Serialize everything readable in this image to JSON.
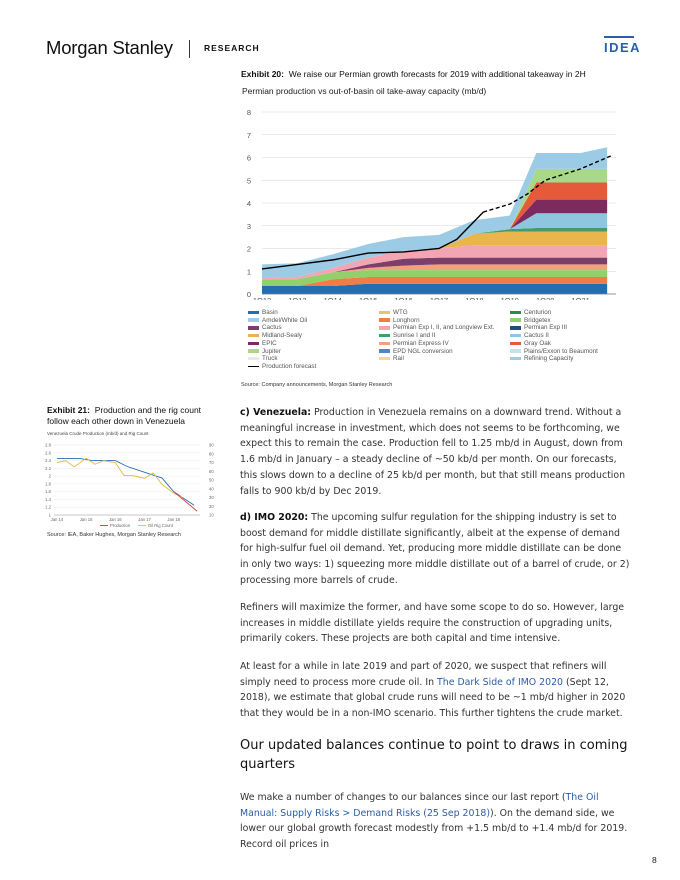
{
  "header": {
    "brand": "Morgan Stanley",
    "section": "RESEARCH",
    "badge": "IDEA"
  },
  "exhibit20": {
    "label": "Exhibit 20:",
    "title": "We raise our Permian growth forecasts for 2019 with additional takeaway in 2H",
    "subtitle": "Permian production vs out-of-basin oil take-away capacity (mb/d)",
    "source": "Source: Company announcements, Morgan Stanley Research"
  },
  "exhibit21": {
    "label": "Exhibit 21:",
    "title": "Production and the rig count follow each other down in Venezuela",
    "subtitle": "Venezuela Crude Production (mb/d) and Rig Count",
    "source": "Source: IEA, Baker Hughes, Morgan Stanley Research"
  },
  "body": {
    "venezuela_lead": "c) Venezuela:",
    "venezuela_text": " Production in Venezuela remains on a downward trend. Without a meaningful increase in investment, which does not seems to be forthcoming, we expect this to remain the case. Production fell to 1.25 mb/d in August, down from 1.6 mb/d in January – a steady decline of ~50 kb/d per month. On our forecasts, this slows down to a decline of 25 kb/d per month, but that still means production falls to 900 kb/d by Dec 2019.",
    "imo_lead": "d) IMO 2020:",
    "imo_text": " The upcoming sulfur regulation for the shipping industry is set to boost demand for middle distillate significantly, albeit at the expense of demand for high-sulfur fuel oil demand. Yet, producing more middle distillate can be done in only two ways: 1) squeezing more middle distillate out of a barrel of crude, or 2) processing more barrels of crude.",
    "refiners_text": "Refiners will maximize the former, and have some scope to do so. However, large increases in middle distillate yields require the construction of upgrading units, primarily cokers. These projects are both capital and time intensive.",
    "para4_a": "At least for a while in late 2019 and part of 2020, we suspect that refiners will simply need to process more crude oil. In ",
    "para4_link": "The Dark Side of IMO 2020",
    "para4_b": " (Sept 12, 2018), we estimate that global crude runs will need to be ~1 mb/d higher in 2020 that they would be in a non-IMO scenario. This further tightens the crude market.",
    "heading": "Our updated balances continue to point to draws in coming quarters",
    "para5_a": "We make a number of changes to our balances since our last report (",
    "para5_link": "The Oil Manual: Supply Risks > Demand Risks (25 Sep 2018)",
    "para5_b": "). On the demand side, we lower our global growth forecast modestly from +1.5 mb/d to +1.4 mb/d for 2019. Record oil prices in"
  },
  "page_number": "8",
  "chart_data": [
    {
      "type": "area",
      "title": "Permian production vs out-of-basin oil take-away capacity (mb/d)",
      "x_labels": [
        "1Q12",
        "1Q13",
        "1Q14",
        "1Q15",
        "1Q16",
        "1Q17",
        "1Q18",
        "1Q19",
        "1Q20",
        "1Q21"
      ],
      "ylim": [
        0,
        8
      ],
      "y_ticks": [
        0,
        1,
        2,
        3,
        4,
        5,
        6,
        7,
        8
      ],
      "grid": true,
      "legend_position": "bottom",
      "x_quarters": [
        2012.0,
        2013.0,
        2014.0,
        2015.0,
        2016.0,
        2017.0,
        2018.0,
        2019.0,
        2019.75,
        2020.0,
        2021.0,
        2021.75
      ],
      "stacked_series": [
        {
          "name": "Basin",
          "color": "#1f6fb2",
          "values": [
            0.35,
            0.35,
            0.35,
            0.45,
            0.45,
            0.45,
            0.45,
            0.45,
            0.45,
            0.45,
            0.45,
            0.45
          ]
        },
        {
          "name": "Longhorn",
          "color": "#ef7d45",
          "values": [
            0,
            0,
            0.3,
            0.3,
            0.3,
            0.3,
            0.3,
            0.3,
            0.3,
            0.3,
            0.3,
            0.3
          ]
        },
        {
          "name": "Bridgetex",
          "color": "#8fd16a",
          "values": [
            0.3,
            0.3,
            0.3,
            0.3,
            0.3,
            0.3,
            0.3,
            0.3,
            0.3,
            0.3,
            0.3,
            0.3
          ]
        },
        {
          "name": "Permian Express IV",
          "color": "#f4a07e",
          "values": [
            0,
            0,
            0,
            0.1,
            0.2,
            0.25,
            0.25,
            0.25,
            0.25,
            0.25,
            0.25,
            0.25
          ]
        },
        {
          "name": "Cactus",
          "color": "#7b3f6a",
          "values": [
            0,
            0,
            0,
            0.15,
            0.3,
            0.3,
            0.3,
            0.3,
            0.3,
            0.3,
            0.3,
            0.3
          ]
        },
        {
          "name": "Permian Exp I, II, and Longview Ext.",
          "color": "#f2a6b4",
          "values": [
            0.05,
            0.1,
            0.2,
            0.3,
            0.35,
            0.4,
            0.55,
            0.55,
            0.55,
            0.55,
            0.55,
            0.55
          ]
        },
        {
          "name": "Midland-Sealy",
          "color": "#e9b54c",
          "values": [
            0,
            0,
            0,
            0,
            0,
            0,
            0.5,
            0.6,
            0.6,
            0.6,
            0.6,
            0.6
          ]
        },
        {
          "name": "Sunrise I and II",
          "color": "#3f9e6a",
          "values": [
            0,
            0,
            0,
            0,
            0,
            0,
            0,
            0.1,
            0.15,
            0.15,
            0.15,
            0.15
          ]
        },
        {
          "name": "Cactus II",
          "color": "#8ec6e0",
          "values": [
            0,
            0,
            0,
            0,
            0,
            0,
            0,
            0,
            0.65,
            0.65,
            0.65,
            0.65
          ]
        },
        {
          "name": "EPIC",
          "color": "#7d2a5f",
          "values": [
            0,
            0,
            0,
            0,
            0,
            0,
            0,
            0,
            0.6,
            0.6,
            0.6,
            0.6
          ]
        },
        {
          "name": "Gray Oak",
          "color": "#e55a3b",
          "values": [
            0,
            0,
            0,
            0,
            0,
            0,
            0,
            0,
            0.75,
            0.75,
            0.75,
            0.75
          ]
        },
        {
          "name": "Jupiter",
          "color": "#a8d98a",
          "values": [
            0,
            0,
            0,
            0,
            0,
            0,
            0,
            0,
            0.6,
            0.6,
            0.6,
            0.6
          ]
        },
        {
          "name": "Refining Capacity",
          "color": "#9ccbe5",
          "values": [
            0.6,
            0.6,
            0.6,
            0.6,
            0.6,
            0.6,
            0.6,
            0.6,
            0.7,
            0.7,
            0.7,
            0.95
          ]
        }
      ],
      "legend_entries": [
        {
          "name": "Basin",
          "color": "#1f6fb2"
        },
        {
          "name": "WTG",
          "color": "#e6c27d"
        },
        {
          "name": "Centurion",
          "color": "#2d8a4a"
        },
        {
          "name": "Amdel/White Oil",
          "color": "#9fcfe4"
        },
        {
          "name": "Longhorn",
          "color": "#ef7d45"
        },
        {
          "name": "Bridgetex",
          "color": "#8fd16a"
        },
        {
          "name": "Cactus",
          "color": "#7b3f6a"
        },
        {
          "name": "Permian Exp I, II, and Longview Ext.",
          "color": "#f2a6b4"
        },
        {
          "name": "Permian Exp III",
          "color": "#1f4e79"
        },
        {
          "name": "Midland-Sealy",
          "color": "#e9b54c"
        },
        {
          "name": "Sunrise I and II",
          "color": "#3f9e6a"
        },
        {
          "name": "Cactus II",
          "color": "#8ec6e0"
        },
        {
          "name": "EPIC",
          "color": "#7d2a5f"
        },
        {
          "name": "Permian Express IV",
          "color": "#f4a07e"
        },
        {
          "name": "Gray Oak",
          "color": "#e55a3b"
        },
        {
          "name": "Jupiter",
          "color": "#a8d98a"
        },
        {
          "name": "EPD NGL conversion",
          "color": "#4f86c6"
        },
        {
          "name": "Plains/Exxon to Beaumont",
          "color": "#c9dff0"
        },
        {
          "name": "Truck",
          "color": "#e8e8e8"
        },
        {
          "name": "Rail",
          "color": "#f0d9a0"
        },
        {
          "name": "Refining Capacity",
          "color": "#9ccbe5"
        },
        {
          "name": "Production forecast",
          "color": "#000000",
          "line": true
        }
      ],
      "production": {
        "name": "Production forecast",
        "x": [
          2012.0,
          2013.0,
          2014.0,
          2015.0,
          2016.0,
          2017.0,
          2017.5,
          2018.0,
          2018.25
        ],
        "y": [
          1.1,
          1.3,
          1.5,
          1.8,
          1.85,
          2.0,
          2.4,
          3.2,
          3.6
        ]
      },
      "production_forecast": {
        "x": [
          2018.25,
          2019.0,
          2019.5,
          2020.0,
          2021.0,
          2021.9
        ],
        "y": [
          3.6,
          3.95,
          4.4,
          5.0,
          5.5,
          6.1
        ]
      }
    },
    {
      "type": "line",
      "title": "Venezuela Crude Production (mb/d) and Rig Count",
      "x_labels": [
        "Jan 14",
        "Jan 15",
        "Jan 16",
        "Jan 17",
        "Jan 18"
      ],
      "y_left_ticks": [
        "2.8",
        "2.6",
        "2.4",
        "2.2",
        "2",
        "1.8",
        "1.6",
        "1.4",
        "1.2",
        "1"
      ],
      "y_right_ticks": [
        "90",
        "80",
        "70",
        "60",
        "50",
        "40",
        "30",
        "20",
        "10"
      ],
      "ylim_left": [
        1,
        2.8
      ],
      "ylim_right": [
        10,
        90
      ],
      "legend_position": "bottom",
      "series": [
        {
          "name": "Production",
          "color": "#2a6fb5",
          "axis": "left",
          "x": [
            2014.0,
            2014.4,
            2014.8,
            2015.2,
            2015.6,
            2016.0,
            2016.4,
            2016.8,
            2017.2,
            2017.6,
            2018.0,
            2018.4,
            2018.7
          ],
          "y": [
            2.45,
            2.45,
            2.45,
            2.4,
            2.4,
            2.4,
            2.25,
            2.15,
            2.05,
            1.95,
            1.6,
            1.4,
            1.25
          ]
        },
        {
          "name": "Oil Rig Count",
          "color": "#e2b94c",
          "axis": "right",
          "x": [
            2014.0,
            2014.3,
            2014.6,
            2015.0,
            2015.3,
            2015.6,
            2016.0,
            2016.3,
            2016.6,
            2017.0,
            2017.3,
            2017.6,
            2018.0,
            2018.3
          ],
          "y": [
            70,
            72,
            65,
            75,
            68,
            72,
            70,
            55,
            55,
            52,
            58,
            45,
            35,
            30
          ]
        },
        {
          "name": "",
          "color": "#d9413a",
          "axis": "left",
          "x": [
            2018.0,
            2018.4,
            2018.8
          ],
          "y": [
            1.6,
            1.35,
            1.1
          ]
        }
      ]
    }
  ]
}
